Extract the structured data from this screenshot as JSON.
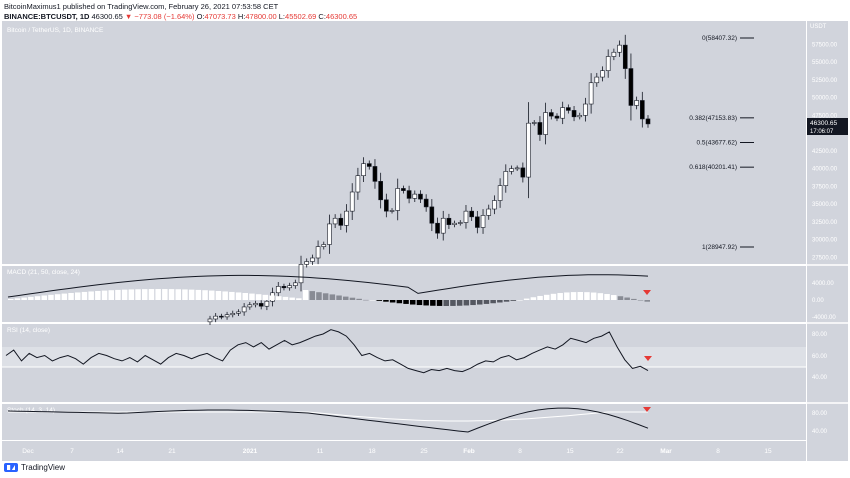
{
  "header": {
    "line1": "BitcoinMaximus1 published on TradingView.com, February 26, 2021 07:53:58 CET",
    "symbol": "BINANCE:BTCUSDT, 1D",
    "last": "46300.65",
    "change": "▼ −773.08 (−1.64%)",
    "o_label": "O:",
    "o": "47073.73",
    "h_label": "H:",
    "h": "47800.00",
    "l_label": "L:",
    "l": "45502.69",
    "c_label": "C:",
    "c": "46300.65"
  },
  "chart": {
    "pane_title": "Bitcoin / TetherUS, 1D, BINANCE",
    "currency": "USDT",
    "price_tag": "46300.65",
    "countdown": "17:06:07",
    "price_ticks": [
      "57500.00",
      "55000.00",
      "52500.00",
      "50000.00",
      "47500.00",
      "45000.00",
      "42500.00",
      "40000.00",
      "37500.00",
      "35000.00",
      "32500.00",
      "30000.00",
      "27500.00"
    ],
    "fib_levels": [
      {
        "label": "0(58407.32)",
        "price": 58407.32
      },
      {
        "label": "0.382(47153.83)",
        "price": 47153.83
      },
      {
        "label": "0.5(43677.62)",
        "price": 43677.62
      },
      {
        "label": "0.618(40201.41)",
        "price": 40201.41
      },
      {
        "label": "1(28947.92)",
        "price": 28947.92
      }
    ],
    "macd_title": "MACD (21, 50, close, 24)",
    "macd_ticks": [
      "4000.00",
      "0.00",
      "-4000.00"
    ],
    "rsi_title": "RSI (14, close)",
    "rsi_ticks": [
      "80.00",
      "60.00",
      "40.00"
    ],
    "stoch_title": "Stoch (14, 3, 14)",
    "stoch_ticks": [
      "80.00",
      "40.00"
    ],
    "x_labels": [
      "Dec",
      "7",
      "14",
      "21",
      "2021",
      "11",
      "18",
      "25",
      "Feb",
      "8",
      "15",
      "22",
      "Mar",
      "8",
      "15"
    ],
    "colors": {
      "bg": "#d1d4dc",
      "up": "#ffffff",
      "down": "#000000",
      "arrow": "#e53935"
    }
  },
  "footer": {
    "brand": "TradingView"
  }
}
